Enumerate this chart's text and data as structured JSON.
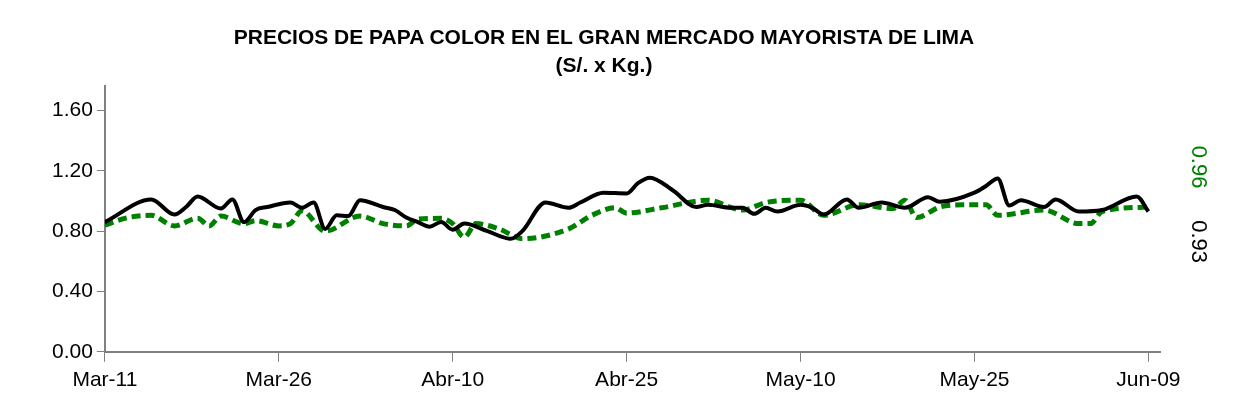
{
  "chart_data": {
    "type": "line",
    "title": "PRECIOS DE PAPA COLOR EN EL GRAN MERCADO MAYORISTA DE LIMA",
    "subtitle": "(S/. x Kg.)",
    "xlim": [
      "--03-11",
      "--06-10"
    ],
    "xticks": [
      {
        "value": "--03-11",
        "label": "Mar-11"
      },
      {
        "value": "--03-26",
        "label": "Mar-26"
      },
      {
        "value": "--04-10",
        "label": "Abr-10"
      },
      {
        "value": "--04-25",
        "label": "Abr-25"
      },
      {
        "value": "--05-10",
        "label": "May-10"
      },
      {
        "value": "--05-25",
        "label": "May-25"
      },
      {
        "value": "--06-09",
        "label": "Jun-09"
      }
    ],
    "ylim": [
      0,
      1.76
    ],
    "yticks": [
      {
        "value": 0,
        "label": "0.00"
      },
      {
        "value": 0.4,
        "label": "0.40"
      },
      {
        "value": 0.8,
        "label": "0.80"
      },
      {
        "value": 1.2,
        "label": "1.20"
      },
      {
        "value": 1.6,
        "label": "1.60"
      }
    ],
    "grid": false,
    "legend": false,
    "series": [
      {
        "color": "#000000",
        "line_style": "solid",
        "x": [
          "--03-11",
          "--03-15",
          "--03-17",
          "--03-18",
          "--03-19",
          "--03-21",
          "--03-22",
          "--03-23",
          "--03-24",
          "--03-25",
          "--03-27",
          "--03-28",
          "--03-29",
          "--03-30",
          "--03-31",
          "--04-01",
          "--04-02",
          "--04-04",
          "--04-05",
          "--04-06",
          "--04-07",
          "--04-08",
          "--04-09",
          "--04-10",
          "--04-11",
          "--04-13",
          "--04-15",
          "--04-16",
          "--04-18",
          "--04-20",
          "--04-21",
          "--04-23",
          "--04-25",
          "--04-26",
          "--04-27",
          "--04-29",
          "--05-01",
          "--05-02",
          "--05-04",
          "--05-05",
          "--05-06",
          "--05-07",
          "--05-08",
          "--05-10",
          "--05-11",
          "--05-12",
          "--05-14",
          "--05-15",
          "--05-17",
          "--05-19",
          "--05-21",
          "--05-22",
          "--05-25",
          "--05-26",
          "--05-27",
          "--05-28",
          "--05-29",
          "--05-31",
          "--06-01",
          "--06-03",
          "--06-05",
          "--06-08",
          "--06-09"
        ],
        "values": [
          0.86,
          1.01,
          0.91,
          0.96,
          1.03,
          0.95,
          1.01,
          0.86,
          0.94,
          0.96,
          0.99,
          0.955,
          0.99,
          0.815,
          0.905,
          0.9,
          1.005,
          0.96,
          0.94,
          0.89,
          0.86,
          0.83,
          0.86,
          0.81,
          0.85,
          0.8,
          0.75,
          0.8,
          0.99,
          0.955,
          0.99,
          1.055,
          1.05,
          1.12,
          1.155,
          1.07,
          0.96,
          0.975,
          0.955,
          0.955,
          0.915,
          0.955,
          0.93,
          0.975,
          0.955,
          0.91,
          1.01,
          0.955,
          0.99,
          0.955,
          1.025,
          0.995,
          1.055,
          1.1,
          1.15,
          0.97,
          1.005,
          0.96,
          1.01,
          0.93,
          0.94,
          1.03,
          0.93
        ],
        "value_labels": [
          null,
          null,
          null,
          null,
          null,
          null,
          null,
          null,
          null,
          null,
          null,
          null,
          null,
          null,
          null,
          null,
          null,
          null,
          null,
          null,
          null,
          null,
          null,
          null,
          null,
          null,
          null,
          null,
          null,
          null,
          null,
          null,
          null,
          null,
          null,
          null,
          null,
          null,
          null,
          null,
          null,
          null,
          null,
          null,
          null,
          null,
          null,
          null,
          null,
          null,
          null,
          null,
          null,
          null,
          null,
          null,
          null,
          null,
          null,
          null,
          null,
          null,
          "0.93"
        ]
      },
      {
        "color": "#008000",
        "line_style": "dashed",
        "x": [
          "--03-11",
          "--03-13",
          "--03-15",
          "--03-17",
          "--03-19",
          "--03-20",
          "--03-21",
          "--03-23",
          "--03-24",
          "--03-26",
          "--03-27",
          "--03-28",
          "--03-30",
          "--04-02",
          "--04-04",
          "--04-06",
          "--04-07",
          "--04-09",
          "--04-10",
          "--04-11",
          "--04-12",
          "--04-14",
          "--04-16",
          "--04-20",
          "--04-22",
          "--04-24",
          "--04-25",
          "--04-28",
          "--05-02",
          "--05-05",
          "--05-07",
          "--05-10",
          "--05-12",
          "--05-15",
          "--05-18",
          "--05-19",
          "--05-20",
          "--05-22",
          "--05-24",
          "--05-26",
          "--05-27",
          "--05-31",
          "--06-03",
          "--06-04",
          "--06-05",
          "--06-09"
        ],
        "values": [
          0.84,
          0.89,
          0.905,
          0.835,
          0.885,
          0.835,
          0.9,
          0.85,
          0.87,
          0.835,
          0.85,
          0.935,
          0.8,
          0.9,
          0.85,
          0.835,
          0.88,
          0.885,
          0.85,
          0.76,
          0.85,
          0.815,
          0.75,
          0.815,
          0.905,
          0.955,
          0.92,
          0.955,
          1.005,
          0.94,
          0.99,
          1.005,
          0.905,
          0.975,
          0.95,
          1.005,
          0.89,
          0.96,
          0.975,
          0.975,
          0.905,
          0.94,
          0.85,
          0.85,
          0.93,
          0.96
        ],
        "value_labels": [
          null,
          null,
          null,
          null,
          null,
          null,
          null,
          null,
          null,
          null,
          null,
          null,
          null,
          null,
          null,
          null,
          null,
          null,
          null,
          null,
          null,
          null,
          null,
          null,
          null,
          null,
          null,
          null,
          null,
          null,
          null,
          null,
          null,
          null,
          null,
          null,
          null,
          null,
          null,
          null,
          null,
          null,
          null,
          null,
          null,
          "0.96"
        ]
      }
    ]
  }
}
